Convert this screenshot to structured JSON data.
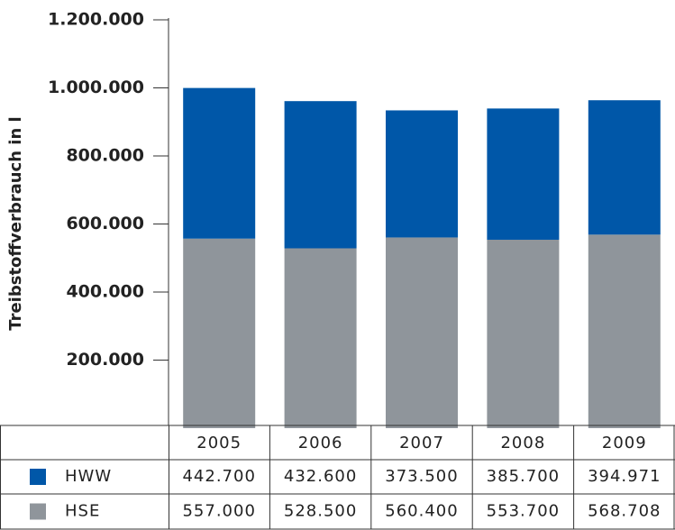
{
  "chart_data": {
    "type": "bar",
    "stacked": true,
    "y_label": "Treibstoffverbrauch in l",
    "categories": [
      "2005",
      "2006",
      "2007",
      "2008",
      "2009"
    ],
    "series": [
      {
        "name": "HWW",
        "color": "#0057a8",
        "values": [
          442700,
          432600,
          373500,
          385700,
          394971
        ],
        "value_labels": [
          "442.700",
          "432.600",
          "373.500",
          "385.700",
          "394.971"
        ]
      },
      {
        "name": "HSE",
        "color": "#8f959b",
        "values": [
          557000,
          528500,
          560400,
          553700,
          568708
        ],
        "value_labels": [
          "557.000",
          "528.500",
          "560.400",
          "553.700",
          "568.708"
        ]
      }
    ],
    "ylim": [
      0,
      1200000
    ],
    "yticks": [
      {
        "value": 200000,
        "label": "200.000"
      },
      {
        "value": 400000,
        "label": "400.000"
      },
      {
        "value": 600000,
        "label": "600.000"
      },
      {
        "value": 800000,
        "label": "800.000"
      },
      {
        "value": 1000000,
        "label": "1.000.000"
      },
      {
        "value": 1200000,
        "label": "1.200.000"
      }
    ]
  }
}
